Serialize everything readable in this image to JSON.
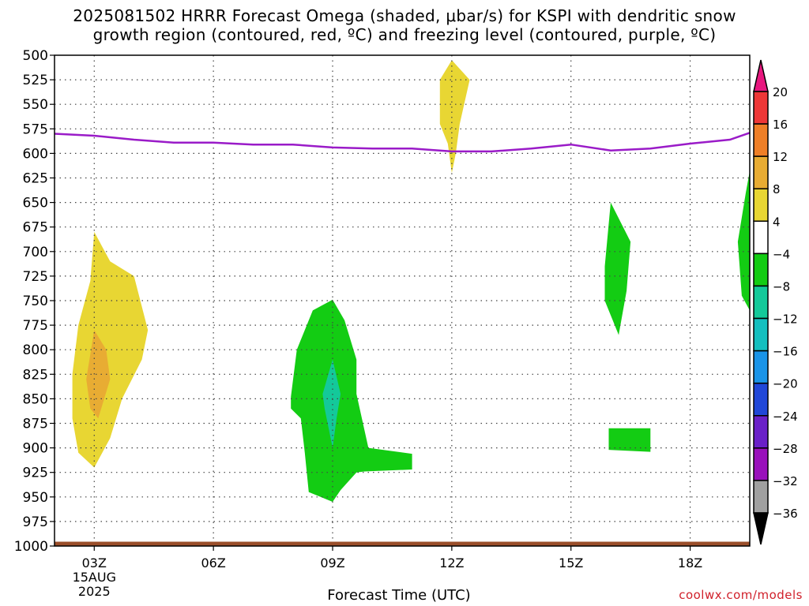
{
  "chart_data": {
    "type": "contour",
    "title_line1": "2025081502 HRRR Forecast Omega (shaded, μbar/s) for KSPI with dendritic snow",
    "title_line2": "growth region (contoured, red, ºC) and freezing level (contoured, purple, ºC)",
    "xlabel": "Forecast Time (UTC)",
    "ylabel": "",
    "credit": "coolwx.com/models",
    "x_ticks": [
      {
        "hour": 3,
        "label": "03Z",
        "sub1": "15AUG",
        "sub2": "2025"
      },
      {
        "hour": 6,
        "label": "06Z"
      },
      {
        "hour": 9,
        "label": "09Z"
      },
      {
        "hour": 12,
        "label": "12Z"
      },
      {
        "hour": 15,
        "label": "15Z"
      },
      {
        "hour": 18,
        "label": "18Z"
      }
    ],
    "xlim": [
      2,
      19.5
    ],
    "y_ticks": [
      500,
      525,
      550,
      575,
      600,
      625,
      650,
      675,
      700,
      725,
      750,
      775,
      800,
      825,
      850,
      875,
      900,
      925,
      950,
      975,
      1000
    ],
    "ylim": [
      500,
      1000
    ],
    "grid": true,
    "colorbar": {
      "labels": [
        "20",
        "16",
        "12",
        "8",
        "4",
        "−4",
        "−8",
        "−12",
        "−16",
        "−20",
        "−24",
        "−28",
        "−32",
        "−36"
      ],
      "colors": [
        "#e8177f",
        "#ee3737",
        "#ef7f27",
        "#e8ac33",
        "#e8d633",
        "#ffffff",
        "#13cc13",
        "#14c99a",
        "#14bfbf",
        "#1a94e8",
        "#2047d8",
        "#6a20c8",
        "#9910bb",
        "#a0a0a0",
        "#000000"
      ]
    },
    "freezing_level": {
      "color": "#9a1bc8",
      "points": [
        [
          2,
          580
        ],
        [
          3,
          582
        ],
        [
          4,
          586
        ],
        [
          5,
          589
        ],
        [
          6,
          589
        ],
        [
          7,
          591
        ],
        [
          8,
          591
        ],
        [
          9,
          594
        ],
        [
          10,
          595
        ],
        [
          11,
          595
        ],
        [
          12,
          598
        ],
        [
          13,
          598
        ],
        [
          14,
          595
        ],
        [
          15,
          591
        ],
        [
          16,
          597
        ],
        [
          17,
          595
        ],
        [
          18,
          590
        ],
        [
          19,
          586
        ],
        [
          19.5,
          579
        ]
      ]
    },
    "surface": {
      "color": "#9a4e2a",
      "pressure": 998
    },
    "omega_regions": [
      {
        "name": "omega-pos-4-03z",
        "color": "#e8d633",
        "points": [
          [
            2.45,
            825
          ],
          [
            2.6,
            775
          ],
          [
            2.9,
            730
          ],
          [
            3.0,
            680
          ],
          [
            3.4,
            710
          ],
          [
            4.0,
            725
          ],
          [
            4.35,
            780
          ],
          [
            4.2,
            810
          ],
          [
            3.7,
            850
          ],
          [
            3.4,
            890
          ],
          [
            3.0,
            920
          ],
          [
            2.6,
            905
          ],
          [
            2.45,
            870
          ]
        ]
      },
      {
        "name": "omega-pos-8-03z",
        "color": "#e8ac33",
        "points": [
          [
            2.8,
            830
          ],
          [
            3.0,
            780
          ],
          [
            3.3,
            800
          ],
          [
            3.4,
            830
          ],
          [
            3.1,
            870
          ],
          [
            2.9,
            860
          ]
        ]
      },
      {
        "name": "omega-pos-4-12z",
        "color": "#e8d633",
        "points": [
          [
            11.7,
            525
          ],
          [
            12.0,
            505
          ],
          [
            12.45,
            525
          ],
          [
            12.2,
            570
          ],
          [
            12.1,
            600
          ],
          [
            12.0,
            620
          ],
          [
            11.9,
            590
          ],
          [
            11.7,
            570
          ]
        ]
      },
      {
        "name": "omega-neg-4-09z",
        "color": "#13cc13",
        "points": [
          [
            7.95,
            848
          ],
          [
            8.1,
            800
          ],
          [
            8.5,
            760
          ],
          [
            9.0,
            749
          ],
          [
            9.3,
            770
          ],
          [
            9.6,
            810
          ],
          [
            9.6,
            845
          ],
          [
            9.9,
            900
          ],
          [
            11.0,
            906
          ],
          [
            11.0,
            922
          ],
          [
            9.8,
            924
          ],
          [
            9.6,
            925
          ],
          [
            9.2,
            943
          ],
          [
            9.0,
            955
          ],
          [
            8.4,
            945
          ],
          [
            8.3,
            905
          ],
          [
            8.2,
            870
          ],
          [
            7.95,
            860
          ]
        ]
      },
      {
        "name": "omega-neg-8-09z",
        "color": "#14c99a",
        "points": [
          [
            8.75,
            845
          ],
          [
            9.0,
            810
          ],
          [
            9.2,
            845
          ],
          [
            9.1,
            870
          ],
          [
            9.0,
            900
          ],
          [
            8.8,
            860
          ]
        ]
      },
      {
        "name": "omega-neg-4-16z",
        "color": "#13cc13",
        "points": [
          [
            15.85,
            715
          ],
          [
            16.0,
            650
          ],
          [
            16.5,
            690
          ],
          [
            16.4,
            740
          ],
          [
            16.2,
            785
          ],
          [
            15.85,
            750
          ]
        ]
      },
      {
        "name": "omega-neg-4-16z-low",
        "color": "#13cc13",
        "points": [
          [
            15.95,
            880
          ],
          [
            17.0,
            880
          ],
          [
            17.0,
            904
          ],
          [
            15.95,
            902
          ]
        ]
      },
      {
        "name": "omega-neg-4-19z",
        "color": "#13cc13",
        "points": [
          [
            19.2,
            690
          ],
          [
            19.4,
            640
          ],
          [
            19.5,
            618
          ],
          [
            19.5,
            760
          ],
          [
            19.3,
            745
          ]
        ]
      }
    ]
  }
}
